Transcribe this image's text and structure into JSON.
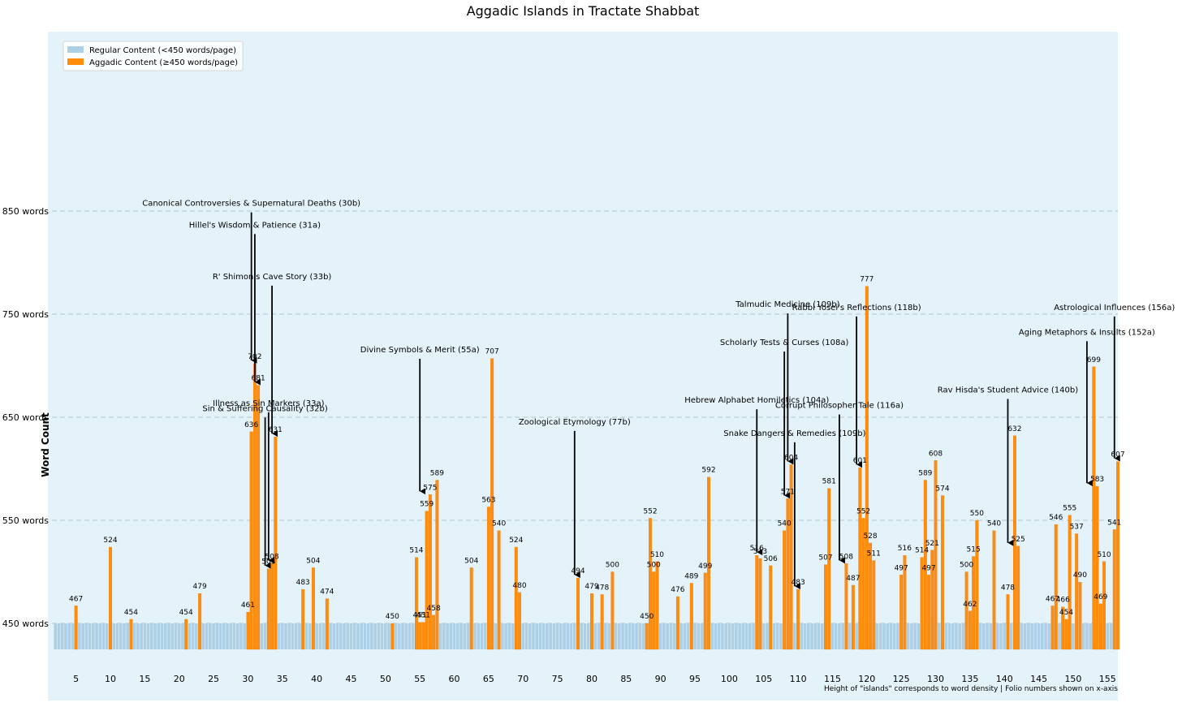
{
  "chart_data": {
    "type": "bar",
    "title": "Aggadic Islands in Tractate Shabbat",
    "ylabel": "Word Count",
    "xlabel": "",
    "footnote": "Height of \"islands\" corresponds to word density | Folio numbers shown on x-axis",
    "xlim": [
      1.5,
      156.5
    ],
    "ylim": [
      425,
      1025
    ],
    "ytick_values": [
      450,
      550,
      650,
      750,
      850
    ],
    "ytick_labels": [
      "450 words",
      "550 words",
      "650 words",
      "750 words",
      "850 words"
    ],
    "xticks": [
      5,
      10,
      15,
      20,
      25,
      30,
      35,
      40,
      45,
      50,
      55,
      60,
      65,
      70,
      75,
      80,
      85,
      90,
      95,
      100,
      105,
      110,
      115,
      120,
      125,
      130,
      135,
      140,
      145,
      150,
      155
    ],
    "grid": "horizontal dashed",
    "legend_position": "top-left",
    "series": [
      {
        "name": "Regular Content (<450 words/page)",
        "color": "#aed0e6",
        "baseline_value": 450
      },
      {
        "name": "Aggadic Content (≥450 words/page)",
        "color": "#ff8c0a"
      }
    ],
    "aggadic_bars": [
      {
        "x": 5,
        "value": 467
      },
      {
        "x": 10,
        "value": 524
      },
      {
        "x": 13,
        "value": 454
      },
      {
        "x": 21,
        "value": 454
      },
      {
        "x": 23,
        "value": 479
      },
      {
        "x": 30,
        "value": 461
      },
      {
        "x": 30.5,
        "value": 636
      },
      {
        "x": 31,
        "value": 702
      },
      {
        "x": 31.5,
        "value": 681
      },
      {
        "x": 33,
        "value": 503
      },
      {
        "x": 33.5,
        "value": 508
      },
      {
        "x": 34,
        "value": 631
      },
      {
        "x": 38,
        "value": 483
      },
      {
        "x": 39.5,
        "value": 504
      },
      {
        "x": 41.5,
        "value": 474
      },
      {
        "x": 51,
        "value": 450
      },
      {
        "x": 54.5,
        "value": 514
      },
      {
        "x": 55,
        "value": 451
      },
      {
        "x": 55.5,
        "value": 451
      },
      {
        "x": 56,
        "value": 559
      },
      {
        "x": 56.5,
        "value": 575
      },
      {
        "x": 57,
        "value": 458
      },
      {
        "x": 57.5,
        "value": 589
      },
      {
        "x": 62.5,
        "value": 504
      },
      {
        "x": 65,
        "value": 563
      },
      {
        "x": 65.5,
        "value": 707
      },
      {
        "x": 66.5,
        "value": 540
      },
      {
        "x": 69,
        "value": 524
      },
      {
        "x": 69.5,
        "value": 480
      },
      {
        "x": 78,
        "value": 494
      },
      {
        "x": 80,
        "value": 479
      },
      {
        "x": 81.5,
        "value": 478
      },
      {
        "x": 83,
        "value": 500
      },
      {
        "x": 88,
        "value": 450
      },
      {
        "x": 88.5,
        "value": 552
      },
      {
        "x": 89,
        "value": 500
      },
      {
        "x": 89.5,
        "value": 510
      },
      {
        "x": 92.5,
        "value": 476
      },
      {
        "x": 94.5,
        "value": 489
      },
      {
        "x": 96.5,
        "value": 499
      },
      {
        "x": 97,
        "value": 592
      },
      {
        "x": 104,
        "value": 516
      },
      {
        "x": 104.5,
        "value": 513
      },
      {
        "x": 106,
        "value": 506
      },
      {
        "x": 108,
        "value": 540
      },
      {
        "x": 108.5,
        "value": 571
      },
      {
        "x": 109,
        "value": 604
      },
      {
        "x": 110,
        "value": 483
      },
      {
        "x": 114,
        "value": 507
      },
      {
        "x": 114.5,
        "value": 581
      },
      {
        "x": 117,
        "value": 508
      },
      {
        "x": 118,
        "value": 487
      },
      {
        "x": 119,
        "value": 601
      },
      {
        "x": 119.5,
        "value": 552
      },
      {
        "x": 120,
        "value": 777
      },
      {
        "x": 120.5,
        "value": 528
      },
      {
        "x": 121,
        "value": 511
      },
      {
        "x": 125,
        "value": 497
      },
      {
        "x": 125.5,
        "value": 516
      },
      {
        "x": 128,
        "value": 514
      },
      {
        "x": 128.5,
        "value": 589
      },
      {
        "x": 129,
        "value": 497
      },
      {
        "x": 129.5,
        "value": 521
      },
      {
        "x": 130,
        "value": 608
      },
      {
        "x": 131,
        "value": 574
      },
      {
        "x": 134.5,
        "value": 500
      },
      {
        "x": 135,
        "value": 462
      },
      {
        "x": 135.5,
        "value": 515
      },
      {
        "x": 136,
        "value": 550
      },
      {
        "x": 138.5,
        "value": 540
      },
      {
        "x": 140.5,
        "value": 478
      },
      {
        "x": 141.5,
        "value": 632
      },
      {
        "x": 142,
        "value": 525
      },
      {
        "x": 147,
        "value": 467
      },
      {
        "x": 147.5,
        "value": 546
      },
      {
        "x": 148.5,
        "value": 466
      },
      {
        "x": 149,
        "value": 454
      },
      {
        "x": 149.5,
        "value": 555
      },
      {
        "x": 150.5,
        "value": 537
      },
      {
        "x": 151,
        "value": 490
      },
      {
        "x": 153,
        "value": 699
      },
      {
        "x": 153.5,
        "value": 583
      },
      {
        "x": 154,
        "value": 469
      },
      {
        "x": 154.5,
        "value": 510
      },
      {
        "x": 156,
        "value": 541
      },
      {
        "x": 156.5,
        "value": 607
      }
    ],
    "annotations": [
      {
        "text": "Canonical Controversies & Supernatural Deaths (30b)",
        "x": 30.5,
        "value": 702,
        "text_value": 855
      },
      {
        "text": "Hillel's Wisdom & Patience (31a)",
        "x": 31,
        "value": 681,
        "text_value": 834
      },
      {
        "text": "R' Shimon's Cave Story (33b)",
        "x": 33.5,
        "value": 631,
        "text_value": 784
      },
      {
        "text": "Illness as Sin Markers (33a)",
        "x": 33,
        "value": 508,
        "text_value": 661
      },
      {
        "text": "Sin & Suffering Causality (32b)",
        "x": 32.5,
        "value": 503,
        "text_value": 656
      },
      {
        "text": "Divine Symbols & Merit (55a)",
        "x": 55,
        "value": 575,
        "text_value": 713
      },
      {
        "text": "Zoological Etymology (77b)",
        "x": 77.5,
        "value": 494,
        "text_value": 643
      },
      {
        "text": "Hebrew Alphabet Homiletics (104a)",
        "x": 104,
        "value": 516,
        "text_value": 664
      },
      {
        "text": "Talmudic Medicine (109b)",
        "x": 108.5,
        "value": 604,
        "text_value": 757
      },
      {
        "text": "Rabbi Yosei's Reflections (118b)",
        "x": 118.5,
        "value": 601,
        "text_value": 754
      },
      {
        "text": "Scholarly Tests & Curses (108a)",
        "x": 108,
        "value": 571,
        "text_value": 720
      },
      {
        "text": "Corrupt Philosopher Tale (116a)",
        "x": 116,
        "value": 508,
        "text_value": 659
      },
      {
        "text": "Snake Dangers & Remedies (109b)",
        "x": 109.5,
        "value": 483,
        "text_value": 632
      },
      {
        "text": "Rav Hisda's Student Advice (140b)",
        "x": 140.5,
        "value": 525,
        "text_value": 674
      },
      {
        "text": "Aging Metaphors & Insults (152a)",
        "x": 152,
        "value": 583,
        "text_value": 730
      },
      {
        "text": "Astrological Influences (156a)",
        "x": 156,
        "value": 607,
        "text_value": 754
      }
    ]
  }
}
